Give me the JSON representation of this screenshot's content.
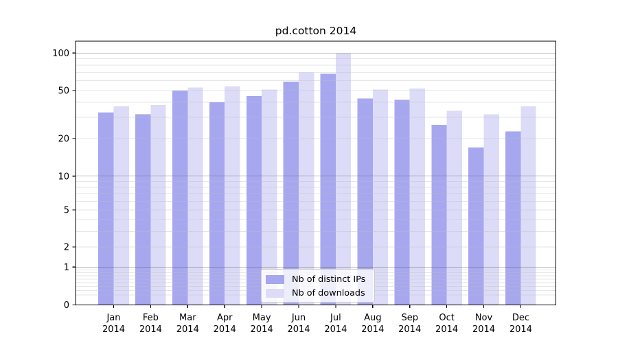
{
  "chart_data": {
    "type": "bar",
    "title": "pd.cotton 2014",
    "categories": [
      "Jan",
      "Feb",
      "Mar",
      "Apr",
      "May",
      "Jun",
      "Jul",
      "Aug",
      "Sep",
      "Oct",
      "Nov",
      "Dec"
    ],
    "category_year": "2014",
    "series": [
      {
        "name": "Nb of distinct IPs",
        "color": "#a7a7f0",
        "values": [
          33,
          32,
          50,
          40,
          45,
          59,
          68,
          43,
          42,
          26,
          17,
          23
        ]
      },
      {
        "name": "Nb of downloads",
        "color": "#dcdcf8",
        "values": [
          37,
          38,
          53,
          54,
          51,
          70,
          100,
          51,
          52,
          34,
          32,
          37
        ]
      }
    ],
    "y_axis": {
      "scale": "log1p",
      "ticks": [
        0,
        1,
        2,
        5,
        10,
        20,
        50,
        100
      ],
      "major_gridlines": [
        1,
        10,
        100
      ],
      "minor_gridlines": [
        0.2,
        0.3,
        0.4,
        0.5,
        0.6,
        0.7,
        0.8,
        0.9,
        2,
        3,
        4,
        5,
        6,
        7,
        8,
        9,
        20,
        30,
        40,
        50,
        60,
        70,
        80,
        90
      ],
      "range": [
        0,
        115
      ]
    },
    "grid": true,
    "legend": {
      "position": "bottom-center"
    }
  }
}
